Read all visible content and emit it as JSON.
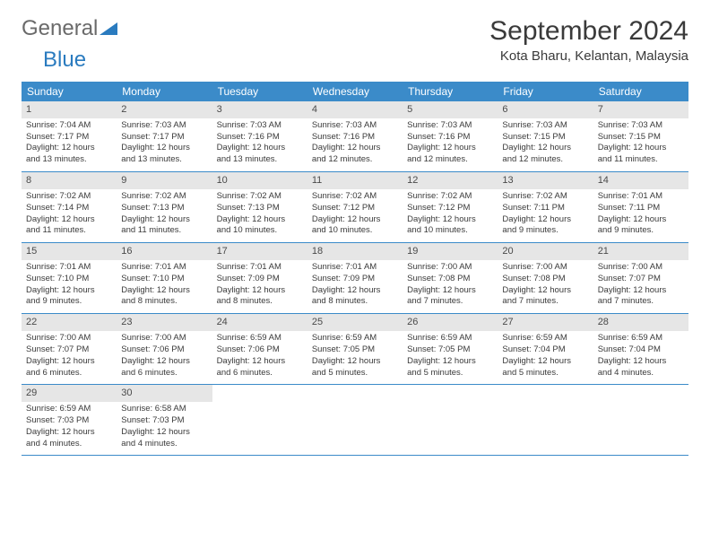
{
  "logo": {
    "text1": "General",
    "text2": "Blue"
  },
  "header": {
    "month_title": "September 2024",
    "location": "Kota Bharu, Kelantan, Malaysia"
  },
  "colors": {
    "header_bg": "#3b8bc9",
    "header_text": "#ffffff",
    "daynum_bg": "#e6e6e6",
    "border": "#3b8bc9",
    "text": "#3a3a3a",
    "logo_gray": "#6a6a6a",
    "logo_blue": "#2a7bbf"
  },
  "days_of_week": [
    "Sunday",
    "Monday",
    "Tuesday",
    "Wednesday",
    "Thursday",
    "Friday",
    "Saturday"
  ],
  "weeks": [
    [
      {
        "n": "1",
        "sr": "Sunrise: 7:04 AM",
        "ss": "Sunset: 7:17 PM",
        "d1": "Daylight: 12 hours",
        "d2": "and 13 minutes."
      },
      {
        "n": "2",
        "sr": "Sunrise: 7:03 AM",
        "ss": "Sunset: 7:17 PM",
        "d1": "Daylight: 12 hours",
        "d2": "and 13 minutes."
      },
      {
        "n": "3",
        "sr": "Sunrise: 7:03 AM",
        "ss": "Sunset: 7:16 PM",
        "d1": "Daylight: 12 hours",
        "d2": "and 13 minutes."
      },
      {
        "n": "4",
        "sr": "Sunrise: 7:03 AM",
        "ss": "Sunset: 7:16 PM",
        "d1": "Daylight: 12 hours",
        "d2": "and 12 minutes."
      },
      {
        "n": "5",
        "sr": "Sunrise: 7:03 AM",
        "ss": "Sunset: 7:16 PM",
        "d1": "Daylight: 12 hours",
        "d2": "and 12 minutes."
      },
      {
        "n": "6",
        "sr": "Sunrise: 7:03 AM",
        "ss": "Sunset: 7:15 PM",
        "d1": "Daylight: 12 hours",
        "d2": "and 12 minutes."
      },
      {
        "n": "7",
        "sr": "Sunrise: 7:03 AM",
        "ss": "Sunset: 7:15 PM",
        "d1": "Daylight: 12 hours",
        "d2": "and 11 minutes."
      }
    ],
    [
      {
        "n": "8",
        "sr": "Sunrise: 7:02 AM",
        "ss": "Sunset: 7:14 PM",
        "d1": "Daylight: 12 hours",
        "d2": "and 11 minutes."
      },
      {
        "n": "9",
        "sr": "Sunrise: 7:02 AM",
        "ss": "Sunset: 7:13 PM",
        "d1": "Daylight: 12 hours",
        "d2": "and 11 minutes."
      },
      {
        "n": "10",
        "sr": "Sunrise: 7:02 AM",
        "ss": "Sunset: 7:13 PM",
        "d1": "Daylight: 12 hours",
        "d2": "and 10 minutes."
      },
      {
        "n": "11",
        "sr": "Sunrise: 7:02 AM",
        "ss": "Sunset: 7:12 PM",
        "d1": "Daylight: 12 hours",
        "d2": "and 10 minutes."
      },
      {
        "n": "12",
        "sr": "Sunrise: 7:02 AM",
        "ss": "Sunset: 7:12 PM",
        "d1": "Daylight: 12 hours",
        "d2": "and 10 minutes."
      },
      {
        "n": "13",
        "sr": "Sunrise: 7:02 AM",
        "ss": "Sunset: 7:11 PM",
        "d1": "Daylight: 12 hours",
        "d2": "and 9 minutes."
      },
      {
        "n": "14",
        "sr": "Sunrise: 7:01 AM",
        "ss": "Sunset: 7:11 PM",
        "d1": "Daylight: 12 hours",
        "d2": "and 9 minutes."
      }
    ],
    [
      {
        "n": "15",
        "sr": "Sunrise: 7:01 AM",
        "ss": "Sunset: 7:10 PM",
        "d1": "Daylight: 12 hours",
        "d2": "and 9 minutes."
      },
      {
        "n": "16",
        "sr": "Sunrise: 7:01 AM",
        "ss": "Sunset: 7:10 PM",
        "d1": "Daylight: 12 hours",
        "d2": "and 8 minutes."
      },
      {
        "n": "17",
        "sr": "Sunrise: 7:01 AM",
        "ss": "Sunset: 7:09 PM",
        "d1": "Daylight: 12 hours",
        "d2": "and 8 minutes."
      },
      {
        "n": "18",
        "sr": "Sunrise: 7:01 AM",
        "ss": "Sunset: 7:09 PM",
        "d1": "Daylight: 12 hours",
        "d2": "and 8 minutes."
      },
      {
        "n": "19",
        "sr": "Sunrise: 7:00 AM",
        "ss": "Sunset: 7:08 PM",
        "d1": "Daylight: 12 hours",
        "d2": "and 7 minutes."
      },
      {
        "n": "20",
        "sr": "Sunrise: 7:00 AM",
        "ss": "Sunset: 7:08 PM",
        "d1": "Daylight: 12 hours",
        "d2": "and 7 minutes."
      },
      {
        "n": "21",
        "sr": "Sunrise: 7:00 AM",
        "ss": "Sunset: 7:07 PM",
        "d1": "Daylight: 12 hours",
        "d2": "and 7 minutes."
      }
    ],
    [
      {
        "n": "22",
        "sr": "Sunrise: 7:00 AM",
        "ss": "Sunset: 7:07 PM",
        "d1": "Daylight: 12 hours",
        "d2": "and 6 minutes."
      },
      {
        "n": "23",
        "sr": "Sunrise: 7:00 AM",
        "ss": "Sunset: 7:06 PM",
        "d1": "Daylight: 12 hours",
        "d2": "and 6 minutes."
      },
      {
        "n": "24",
        "sr": "Sunrise: 6:59 AM",
        "ss": "Sunset: 7:06 PM",
        "d1": "Daylight: 12 hours",
        "d2": "and 6 minutes."
      },
      {
        "n": "25",
        "sr": "Sunrise: 6:59 AM",
        "ss": "Sunset: 7:05 PM",
        "d1": "Daylight: 12 hours",
        "d2": "and 5 minutes."
      },
      {
        "n": "26",
        "sr": "Sunrise: 6:59 AM",
        "ss": "Sunset: 7:05 PM",
        "d1": "Daylight: 12 hours",
        "d2": "and 5 minutes."
      },
      {
        "n": "27",
        "sr": "Sunrise: 6:59 AM",
        "ss": "Sunset: 7:04 PM",
        "d1": "Daylight: 12 hours",
        "d2": "and 5 minutes."
      },
      {
        "n": "28",
        "sr": "Sunrise: 6:59 AM",
        "ss": "Sunset: 7:04 PM",
        "d1": "Daylight: 12 hours",
        "d2": "and 4 minutes."
      }
    ],
    [
      {
        "n": "29",
        "sr": "Sunrise: 6:59 AM",
        "ss": "Sunset: 7:03 PM",
        "d1": "Daylight: 12 hours",
        "d2": "and 4 minutes."
      },
      {
        "n": "30",
        "sr": "Sunrise: 6:58 AM",
        "ss": "Sunset: 7:03 PM",
        "d1": "Daylight: 12 hours",
        "d2": "and 4 minutes."
      },
      {
        "empty": true
      },
      {
        "empty": true
      },
      {
        "empty": true
      },
      {
        "empty": true
      },
      {
        "empty": true
      }
    ]
  ]
}
